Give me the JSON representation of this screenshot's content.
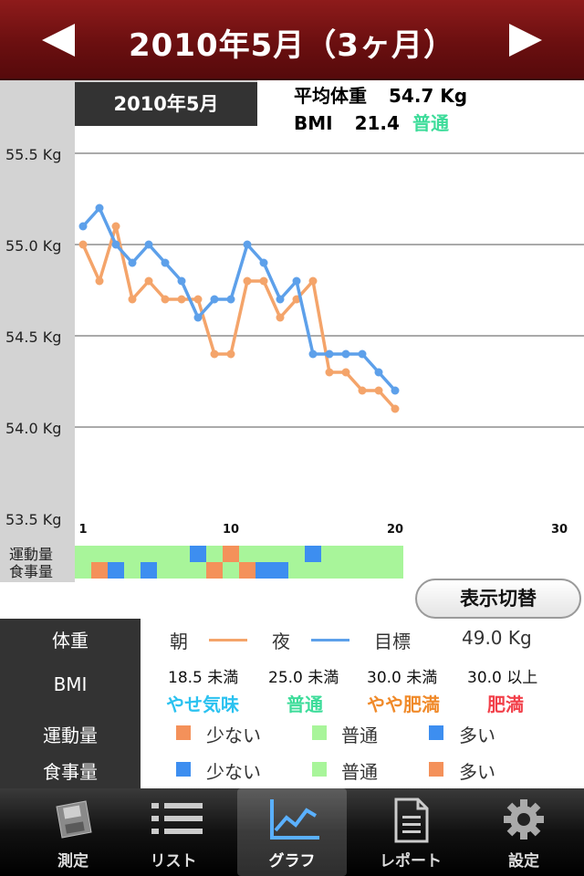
{
  "header": {
    "title": "2010年5月（3ヶ月）",
    "prev": "◀",
    "next": "▶"
  },
  "summary": {
    "month_tab": "2010年5月",
    "avg_weight_label": "平均体重",
    "avg_weight_value": "54.7 Kg",
    "bmi_label": "BMI",
    "bmi_value": "21.4",
    "bmi_class": "普通"
  },
  "chart_data": {
    "type": "line",
    "ylim": [
      53.5,
      55.5
    ],
    "xlim": [
      1,
      30
    ],
    "y_ticks": [
      "55.5 Kg",
      "55.0 Kg",
      "54.5 Kg",
      "54.0 Kg",
      "53.5 Kg"
    ],
    "y_tick_values": [
      55.5,
      55.0,
      54.5,
      54.0,
      53.5
    ],
    "x_ticks": [
      "1",
      "10",
      "20",
      "30"
    ],
    "x_tick_values": [
      1,
      10,
      20,
      30
    ],
    "series": [
      {
        "key": "morning",
        "color": "#f4a46a",
        "x": [
          1,
          2,
          3,
          4,
          5,
          6,
          7,
          8,
          9,
          10,
          11,
          12,
          13,
          14,
          15,
          16,
          17,
          18,
          19,
          20
        ],
        "y": [
          55.0,
          54.8,
          55.1,
          54.7,
          54.8,
          54.7,
          54.7,
          54.7,
          54.4,
          54.4,
          54.8,
          54.8,
          54.6,
          54.7,
          54.8,
          54.3,
          54.3,
          54.2,
          54.2,
          54.1
        ]
      },
      {
        "key": "night",
        "color": "#5da0ea",
        "x": [
          1,
          2,
          3,
          4,
          5,
          6,
          7,
          8,
          9,
          10,
          11,
          12,
          13,
          14,
          15,
          16,
          17,
          18,
          19,
          20
        ],
        "y": [
          55.1,
          55.2,
          55.0,
          54.9,
          55.0,
          54.9,
          54.8,
          54.6,
          54.7,
          54.7,
          55.0,
          54.9,
          54.7,
          54.8,
          54.4,
          54.4,
          54.4,
          54.4,
          54.3,
          54.2
        ]
      }
    ],
    "activity_label": "運動量",
    "meal_label": "食事量",
    "activity": [
      "n",
      "n",
      "n",
      "n",
      "n",
      "n",
      "n",
      "h",
      "n",
      "l",
      "n",
      "n",
      "n",
      "n",
      "h",
      "n",
      "n",
      "n",
      "n",
      "n"
    ],
    "meal": [
      "n",
      "l",
      "h",
      "n",
      "h",
      "n",
      "n",
      "n",
      "l",
      "n",
      "l",
      "h",
      "h",
      "n",
      "n",
      "n",
      "n",
      "n",
      "n",
      "n"
    ]
  },
  "toggle_button": "表示切替",
  "legend": {
    "weight_label": "体重",
    "morning": "朝",
    "night": "夜",
    "goal_label": "目標",
    "goal_value": "49.0 Kg",
    "bmi_label": "BMI",
    "bmi_ranges": [
      "18.5 未満",
      "25.0 未満",
      "30.0 未満",
      "30.0 以上"
    ],
    "bmi_classes": [
      "やせ気味",
      "普通",
      "やや肥満",
      "肥満"
    ],
    "bmi_class_colors": [
      "#2bc2f0",
      "#3ddc9a",
      "#f08a2a",
      "#f2404a"
    ],
    "activity_label": "運動量",
    "meal_label": "食事量",
    "few": "少ない",
    "normal": "普通",
    "many": "多い"
  },
  "colors": {
    "orange": "#f4915a",
    "green": "#a8f59a",
    "blue": "#3d8ef0"
  },
  "tabs": [
    {
      "label": "測定",
      "icon": "floppy-icon"
    },
    {
      "label": "リスト",
      "icon": "list-icon"
    },
    {
      "label": "グラフ",
      "icon": "graph-icon",
      "active": true
    },
    {
      "label": "レポート",
      "icon": "document-icon"
    },
    {
      "label": "設定",
      "icon": "gear-icon"
    }
  ]
}
